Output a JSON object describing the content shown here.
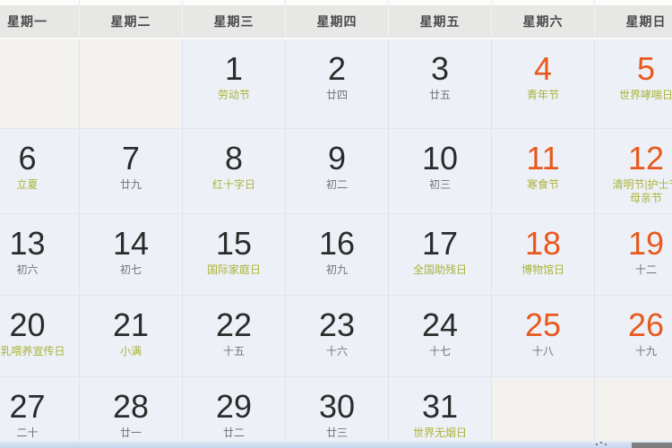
{
  "calendar": {
    "weekdays": [
      "星期一",
      "星期二",
      "星期三",
      "星期四",
      "星期五",
      "星期六",
      "星期日"
    ],
    "rows": [
      [
        {
          "empty": true
        },
        {
          "empty": true
        },
        {
          "day": "1",
          "note": "劳动节",
          "note_type": "festival",
          "weekend": false
        },
        {
          "day": "2",
          "note": "廿四",
          "note_type": "lunar",
          "weekend": false
        },
        {
          "day": "3",
          "note": "廿五",
          "note_type": "lunar",
          "weekend": false
        },
        {
          "day": "4",
          "note": "青年节",
          "note_type": "festival",
          "weekend": true
        },
        {
          "day": "5",
          "note": "世界哮喘日",
          "note_type": "festival",
          "weekend": true
        }
      ],
      [
        {
          "day": "6",
          "note": "立夏",
          "note_type": "festival",
          "weekend": false
        },
        {
          "day": "7",
          "note": "廿九",
          "note_type": "lunar",
          "weekend": false
        },
        {
          "day": "8",
          "note": "红十字日",
          "note_type": "festival",
          "weekend": false
        },
        {
          "day": "9",
          "note": "初二",
          "note_type": "lunar",
          "weekend": false
        },
        {
          "day": "10",
          "note": "初三",
          "note_type": "lunar",
          "weekend": false
        },
        {
          "day": "11",
          "note": "寒食节",
          "note_type": "festival",
          "weekend": true
        },
        {
          "day": "12",
          "note": "清明节|护士节\n母亲节",
          "note_type": "festival",
          "weekend": true
        }
      ],
      [
        {
          "day": "13",
          "note": "初六",
          "note_type": "lunar",
          "weekend": false
        },
        {
          "day": "14",
          "note": "初七",
          "note_type": "lunar",
          "weekend": false
        },
        {
          "day": "15",
          "note": "国际家庭日",
          "note_type": "festival",
          "weekend": false
        },
        {
          "day": "16",
          "note": "初九",
          "note_type": "lunar",
          "weekend": false
        },
        {
          "day": "17",
          "note": "全国助残日",
          "note_type": "festival",
          "weekend": false
        },
        {
          "day": "18",
          "note": "博物馆日",
          "note_type": "festival",
          "weekend": true
        },
        {
          "day": "19",
          "note": "十二",
          "note_type": "lunar",
          "weekend": true
        }
      ],
      [
        {
          "day": "20",
          "note": "母乳喂养宣传日",
          "note_type": "festival",
          "weekend": false
        },
        {
          "day": "21",
          "note": "小满",
          "note_type": "festival",
          "weekend": false
        },
        {
          "day": "22",
          "note": "十五",
          "note_type": "lunar",
          "weekend": false
        },
        {
          "day": "23",
          "note": "十六",
          "note_type": "lunar",
          "weekend": false
        },
        {
          "day": "24",
          "note": "十七",
          "note_type": "lunar",
          "weekend": false
        },
        {
          "day": "25",
          "note": "十八",
          "note_type": "lunar",
          "weekend": true
        },
        {
          "day": "26",
          "note": "十九",
          "note_type": "lunar",
          "weekend": true
        }
      ],
      [
        {
          "day": "27",
          "note": "二十",
          "note_type": "lunar",
          "weekend": false
        },
        {
          "day": "28",
          "note": "廿一",
          "note_type": "lunar",
          "weekend": false
        },
        {
          "day": "29",
          "note": "廿二",
          "note_type": "lunar",
          "weekend": false
        },
        {
          "day": "30",
          "note": "廿三",
          "note_type": "lunar",
          "weekend": false
        },
        {
          "day": "31",
          "note": "世界无烟日",
          "note_type": "festival",
          "weekend": false
        },
        {
          "empty": true,
          "weekend": true
        },
        {
          "empty": true,
          "weekend": true
        }
      ]
    ],
    "colors": {
      "header_bg": "#e7e7e5",
      "header_text": "#4a4a4a",
      "cell_bg": "#edf1f7",
      "empty_cell_bg": "#f2f1ed",
      "day_text": "#2b2b2b",
      "weekend_day_text": "#e8581c",
      "festival_text": "#aab239",
      "lunar_text": "#6f7277",
      "grid_border": "#dce3ee",
      "bottom_strip": "#c5d4ec",
      "scroll_thumb": "#7f7f7f"
    }
  }
}
